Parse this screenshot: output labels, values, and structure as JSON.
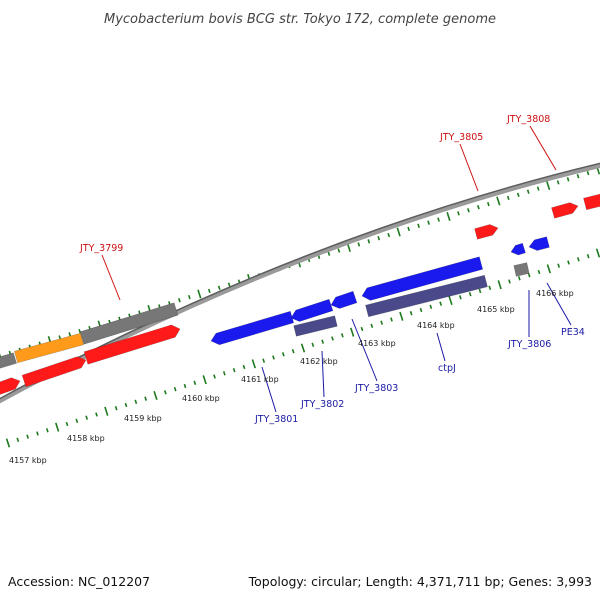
{
  "title": "Mycobacterium bovis BCG str. Tokyo 172, complete genome",
  "footer": {
    "accession": "Accession: NC_012207",
    "summary": "Topology: circular; Length: 4,371,711 bp; Genes: 3,993"
  },
  "colors": {
    "red": "#ff1a1a",
    "blue": "#1a1aee",
    "gray": "#777777",
    "orange": "#ff9a1a",
    "slate": "#4a4a8a",
    "tick": "#1e7a1e",
    "red_label": "#cc1111",
    "blue_label": "#1a1aa6"
  },
  "tick_labels": [
    {
      "text": "4157 kbp"
    },
    {
      "text": "4158 kbp"
    },
    {
      "text": "4159 kbp"
    },
    {
      "text": "4160 kbp"
    },
    {
      "text": "4161 kbp"
    },
    {
      "text": "4162 kbp"
    },
    {
      "text": "4163 kbp"
    },
    {
      "text": "4164 kbp"
    },
    {
      "text": "4165 kbp"
    },
    {
      "text": "4166 kbp"
    }
  ],
  "gene_labels": [
    {
      "text": "JTY_3799",
      "color": "red"
    },
    {
      "text": "JTY_3805",
      "color": "red"
    },
    {
      "text": "JTY_3808",
      "color": "red"
    },
    {
      "text": "JTY_3801",
      "color": "blue"
    },
    {
      "text": "JTY_3802",
      "color": "blue"
    },
    {
      "text": "JTY_3803",
      "color": "blue"
    },
    {
      "text": "ctpJ",
      "color": "blue"
    },
    {
      "text": "JTY_3806",
      "color": "blue"
    },
    {
      "text": "PE34",
      "color": "blue"
    }
  ]
}
